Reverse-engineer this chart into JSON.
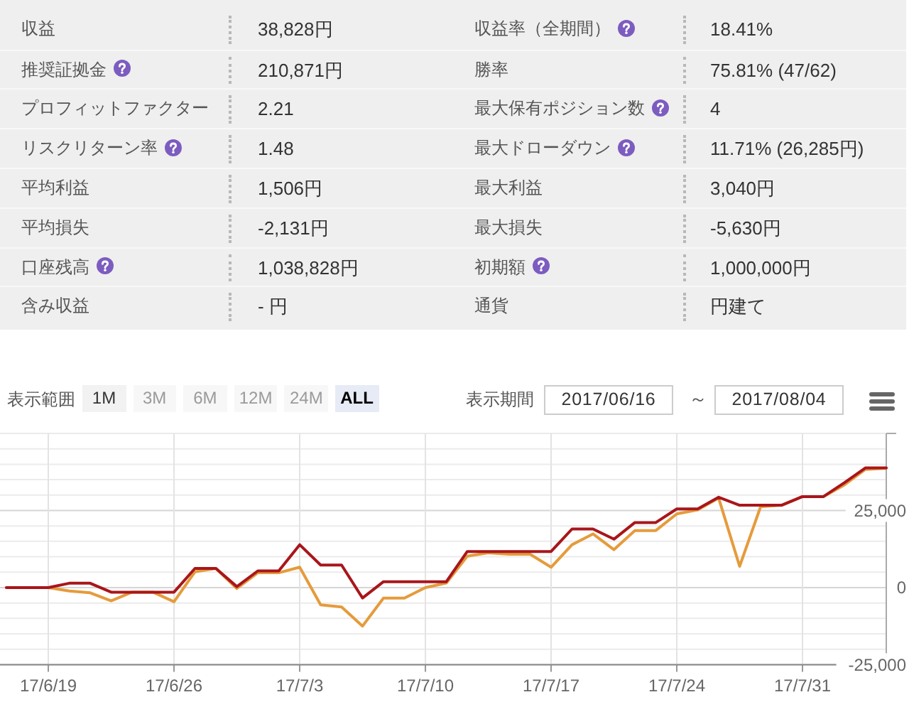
{
  "chart_data": [
    {
      "type": "other",
      "annotations": [
        "収益",
        "38,828円",
        "収益率（全期間）",
        "18.41%",
        "推奨証拠金",
        "210,871円",
        "勝率",
        "75.81% (47/62)",
        "プロフィットファクター",
        "2.21",
        "最大保有ポジション数",
        "4",
        "リスクリターン率",
        "1.48",
        "最大ドローダウン",
        "11.71% (26,285円)",
        "平均利益",
        "1,506円",
        "最大利益",
        "3,040円",
        "平均損失",
        "-2,131円",
        "最大損失",
        "-5,630円",
        "口座残高",
        "1,038,828円",
        "初期額",
        "1,000,000円",
        "含み収益",
        "- 円",
        "通貨",
        "円建て"
      ]
    },
    {
      "type": "line",
      "annotations": [
        "表示範囲",
        "1M",
        "3M",
        "6M",
        "12M",
        "24M",
        "ALL",
        "表示期間",
        "2017/06/16",
        "～",
        "2017/08/04"
      ],
      "categories": [
        null,
        null,
        "17/6/19",
        null,
        null,
        null,
        null,
        null,
        "17/6/26",
        null,
        null,
        null,
        null,
        null,
        "17/7/3",
        null,
        null,
        null,
        null,
        null,
        "17/7/10",
        null,
        null,
        null,
        null,
        null,
        "17/7/17",
        null,
        null,
        null,
        null,
        null,
        "17/7/24",
        null,
        null,
        null,
        null,
        null,
        "17/7/31",
        null,
        null,
        null,
        null
      ],
      "series": [
        {
          "color": "#e59b3c",
          "values": [
            0,
            0,
            0,
            -1100,
            -1700,
            -4300,
            -1500,
            -1500,
            -4600,
            5100,
            6200,
            -300,
            4800,
            4800,
            6600,
            -5600,
            -6300,
            -12500,
            -3400,
            -3400,
            0,
            1500,
            10200,
            11300,
            10800,
            10800,
            6600,
            13900,
            17400,
            12300,
            18500,
            18500,
            23900,
            25200,
            29000,
            6900,
            26200,
            26700,
            29500,
            29500,
            33300,
            38300,
            38700
          ]
        },
        {
          "color": "#a8161b",
          "values": [
            0,
            0,
            0,
            1400,
            1400,
            -1500,
            -1500,
            -1500,
            -1500,
            6200,
            6200,
            300,
            5400,
            5400,
            13900,
            7300,
            7300,
            -3400,
            1900,
            1900,
            1900,
            1900,
            11700,
            11700,
            11700,
            11700,
            11700,
            19000,
            19000,
            15700,
            21100,
            21100,
            25500,
            25500,
            29300,
            26700,
            26700,
            26700,
            29500,
            29500,
            34000,
            38800,
            38800
          ]
        }
      ],
      "ylim": [
        -25000,
        50000
      ],
      "yticks": [
        {
          "value": -25000,
          "label": "-25,000"
        },
        {
          "value": -20000,
          "label": null
        },
        {
          "value": -15000,
          "label": null
        },
        {
          "value": -10000,
          "label": null
        },
        {
          "value": -5000,
          "label": null
        },
        0,
        {
          "value": 5000,
          "label": null
        },
        {
          "value": 10000,
          "label": null
        },
        {
          "value": 15000,
          "label": null
        },
        {
          "value": 20000,
          "label": null
        },
        {
          "value": 25000,
          "label": "25,000"
        },
        {
          "value": 30000,
          "label": null
        },
        {
          "value": 35000,
          "label": null
        },
        {
          "value": 40000,
          "label": null
        },
        {
          "value": 45000,
          "label": null
        },
        {
          "value": 50000,
          "label": null
        }
      ],
      "grid": true
    }
  ]
}
